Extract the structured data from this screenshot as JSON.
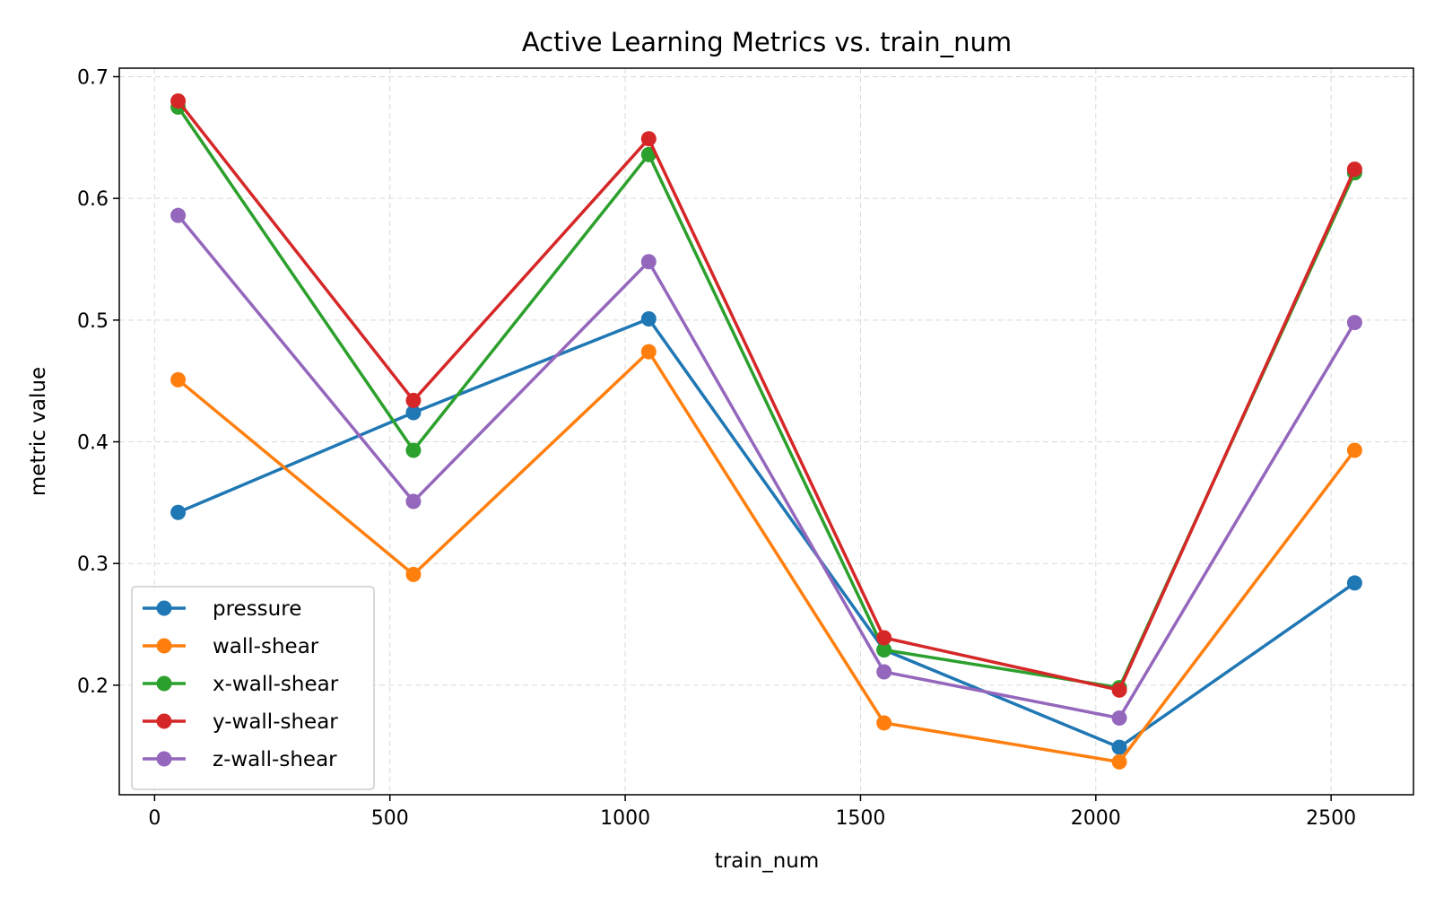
{
  "chart_data": {
    "type": "line",
    "title": "Active Learning Metrics vs. train_num",
    "xlabel": "train_num",
    "ylabel": "metric value",
    "x": [
      50,
      550,
      1050,
      1550,
      2050,
      2550
    ],
    "xlim": [
      -75,
      2675
    ],
    "ylim": [
      0.11,
      0.707
    ],
    "xticks": [
      0,
      500,
      1000,
      1500,
      2000,
      2500
    ],
    "yticks": [
      0.2,
      0.3,
      0.4,
      0.5,
      0.6,
      0.7
    ],
    "xtick_labels": [
      "0",
      "500",
      "1000",
      "1500",
      "2000",
      "2500"
    ],
    "ytick_labels": [
      "0.2",
      "0.3",
      "0.4",
      "0.5",
      "0.6",
      "0.7"
    ],
    "grid": true,
    "legend_position": "lower-left",
    "series": [
      {
        "name": "pressure",
        "color": "#1f77b4",
        "values": [
          0.342,
          0.424,
          0.501,
          0.229,
          0.149,
          0.284
        ]
      },
      {
        "name": "wall-shear",
        "color": "#ff7f0e",
        "values": [
          0.451,
          0.291,
          0.474,
          0.169,
          0.137,
          0.393
        ]
      },
      {
        "name": "x-wall-shear",
        "color": "#2ca02c",
        "values": [
          0.675,
          0.393,
          0.636,
          0.229,
          0.198,
          0.621
        ]
      },
      {
        "name": "y-wall-shear",
        "color": "#d62728",
        "values": [
          0.68,
          0.434,
          0.649,
          0.239,
          0.196,
          0.624
        ]
      },
      {
        "name": "z-wall-shear",
        "color": "#9467bd",
        "values": [
          0.586,
          0.351,
          0.548,
          0.211,
          0.173,
          0.498
        ]
      }
    ]
  }
}
